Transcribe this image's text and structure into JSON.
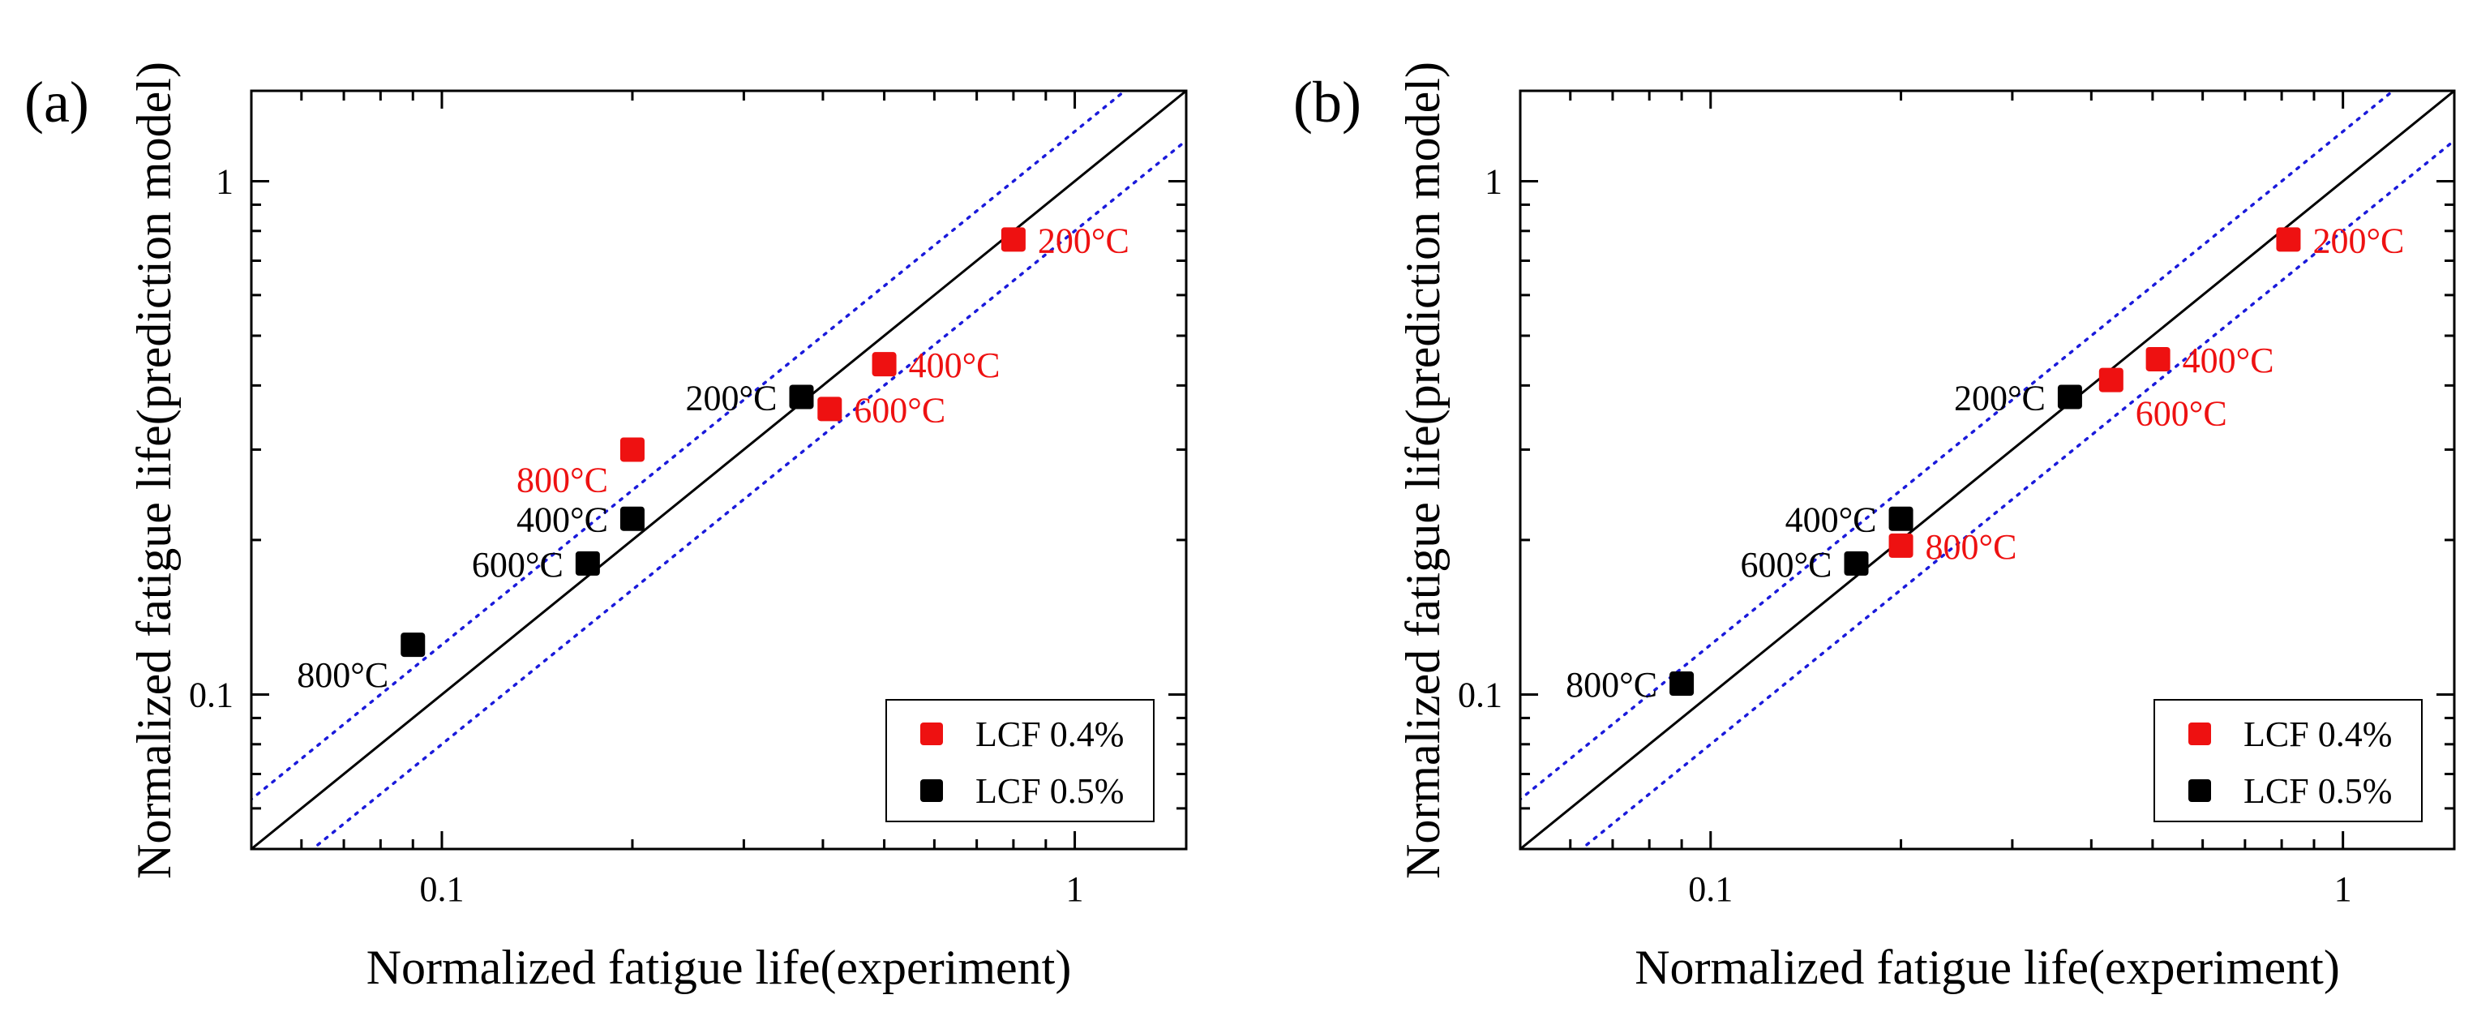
{
  "chart_data": [
    {
      "type": "scatter",
      "panel_label": "(a)",
      "xlabel": "Normalized fatigue life(experiment)",
      "ylabel": "Normalized fatigue life(prediction model)",
      "xscale": "log",
      "yscale": "log",
      "xlim": [
        0.05,
        1.5
      ],
      "ylim": [
        0.05,
        1.5
      ],
      "xticks": [
        {
          "value": 0.1,
          "label": "0.1"
        },
        {
          "value": 1,
          "label": "1"
        }
      ],
      "yticks": [
        {
          "value": 0.1,
          "label": "0.1"
        },
        {
          "value": 1,
          "label": "1"
        }
      ],
      "reference_lines": [
        {
          "name": "y = x",
          "slope": 1,
          "color": "#000000",
          "style": "solid"
        },
        {
          "name": "upper scatter band",
          "slope": 1.25,
          "color": "#1a1adb",
          "style": "dotted"
        },
        {
          "name": "lower scatter band",
          "slope": 0.8,
          "color": "#1a1adb",
          "style": "dotted"
        }
      ],
      "series": [
        {
          "name": "LCF 0.4%",
          "color": "#ee1111",
          "points": [
            {
              "x": 0.8,
              "y": 0.77,
              "label": "200°C",
              "label_pos": "right"
            },
            {
              "x": 0.5,
              "y": 0.44,
              "label": "400°C",
              "label_pos": "right"
            },
            {
              "x": 0.41,
              "y": 0.36,
              "label": "600°C",
              "label_pos": "right"
            },
            {
              "x": 0.2,
              "y": 0.3,
              "label": "800°C",
              "label_pos": "left-below"
            }
          ]
        },
        {
          "name": "LCF 0.5%",
          "color": "#000000",
          "points": [
            {
              "x": 0.37,
              "y": 0.38,
              "label": "200°C",
              "label_pos": "left"
            },
            {
              "x": 0.2,
              "y": 0.22,
              "label": "400°C",
              "label_pos": "left"
            },
            {
              "x": 0.17,
              "y": 0.18,
              "label": "600°C",
              "label_pos": "left"
            },
            {
              "x": 0.09,
              "y": 0.125,
              "label": "800°C",
              "label_pos": "left-below"
            }
          ]
        }
      ],
      "legend": {
        "position": "bottom-right",
        "entries": [
          "LCF 0.4%",
          "LCF 0.5%"
        ]
      }
    },
    {
      "type": "scatter",
      "panel_label": "(b)",
      "xlabel": "Normalized fatigue life(experiment)",
      "ylabel": "Normalized fatigue life(prediction model)",
      "xscale": "log",
      "yscale": "log",
      "xlim": [
        0.05,
        1.5
      ],
      "ylim": [
        0.05,
        1.5
      ],
      "xticks": [
        {
          "value": 0.1,
          "label": "0.1"
        },
        {
          "value": 1,
          "label": "1"
        }
      ],
      "yticks": [
        {
          "value": 0.1,
          "label": "0.1"
        },
        {
          "value": 1,
          "label": "1"
        }
      ],
      "reference_lines": [
        {
          "name": "y = x",
          "slope": 1,
          "color": "#000000",
          "style": "solid"
        },
        {
          "name": "upper scatter band",
          "slope": 1.25,
          "color": "#1a1adb",
          "style": "dotted"
        },
        {
          "name": "lower scatter band",
          "slope": 0.8,
          "color": "#1a1adb",
          "style": "dotted"
        }
      ],
      "series": [
        {
          "name": "LCF 0.4%",
          "color": "#ee1111",
          "points": [
            {
              "x": 0.82,
              "y": 0.77,
              "label": "200°C",
              "label_pos": "right"
            },
            {
              "x": 0.51,
              "y": 0.45,
              "label": "400°C",
              "label_pos": "right"
            },
            {
              "x": 0.43,
              "y": 0.41,
              "label": "600°C",
              "label_pos": "right-below"
            },
            {
              "x": 0.2,
              "y": 0.195,
              "label": "800°C",
              "label_pos": "right"
            }
          ]
        },
        {
          "name": "LCF 0.5%",
          "color": "#000000",
          "points": [
            {
              "x": 0.37,
              "y": 0.38,
              "label": "200°C",
              "label_pos": "left"
            },
            {
              "x": 0.2,
              "y": 0.22,
              "label": "400°C",
              "label_pos": "left"
            },
            {
              "x": 0.17,
              "y": 0.18,
              "label": "600°C",
              "label_pos": "left"
            },
            {
              "x": 0.09,
              "y": 0.105,
              "label": "800°C",
              "label_pos": "left"
            }
          ]
        }
      ],
      "legend": {
        "position": "bottom-right",
        "entries": [
          "LCF 0.4%",
          "LCF 0.5%"
        ]
      }
    }
  ]
}
